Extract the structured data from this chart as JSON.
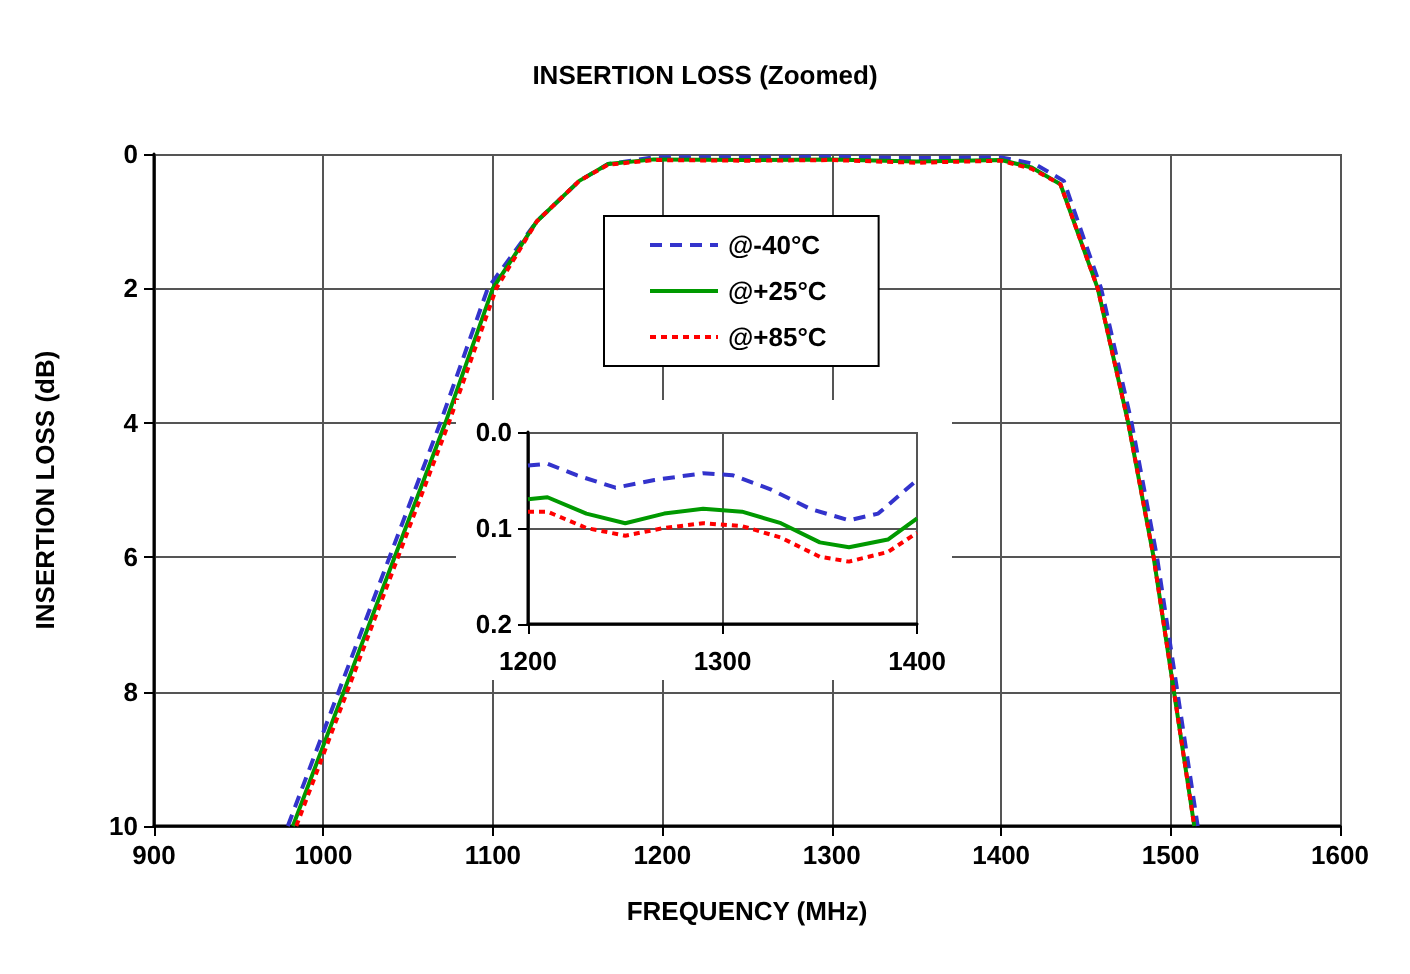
{
  "chart_data": [
    {
      "type": "line",
      "title": "INSERTION LOSS (Zoomed)",
      "xlabel": "FREQUENCY (MHz)",
      "ylabel": "INSERTION LOSS (dB)",
      "xlim": [
        900,
        1600
      ],
      "xticks": [
        900,
        1000,
        1100,
        1200,
        1300,
        1400,
        1500,
        1600
      ],
      "ylim": [
        10,
        0
      ],
      "yticks": [
        0,
        2,
        4,
        6,
        8,
        10
      ],
      "grid": true,
      "legend": "top",
      "marker": "none",
      "series": [
        {
          "name": "@-40°C",
          "color": "#3333cc",
          "line_style": "dashed",
          "x": [
            979,
            1009,
            1039,
            1069,
            1097,
            1126,
            1151,
            1168,
            1195,
            1250,
            1300,
            1350,
            1400,
            1420,
            1437,
            1459,
            1477,
            1492,
            1504,
            1516
          ],
          "values": [
            10,
            8,
            6,
            4,
            2,
            1,
            0.4,
            0.15,
            0.05,
            0.05,
            0.04,
            0.06,
            0.05,
            0.15,
            0.4,
            2,
            4,
            6,
            8,
            10
          ]
        },
        {
          "name": "@+25°C",
          "color": "#009900",
          "line_style": "solid",
          "x": [
            982,
            1012,
            1042,
            1072,
            1100,
            1126,
            1151,
            1168,
            1195,
            1250,
            1300,
            1350,
            1400,
            1418,
            1435,
            1457,
            1475,
            1490,
            1502,
            1514
          ],
          "values": [
            10,
            8,
            6,
            4,
            2,
            1,
            0.4,
            0.15,
            0.08,
            0.09,
            0.08,
            0.11,
            0.09,
            0.2,
            0.45,
            2,
            4,
            6,
            8,
            10
          ]
        },
        {
          "name": "@+85°C",
          "color": "#ff0000",
          "line_style": "dotted",
          "x": [
            984,
            1014,
            1044,
            1074,
            1102,
            1126,
            1151,
            1168,
            1195,
            1250,
            1300,
            1350,
            1400,
            1418,
            1435,
            1457,
            1475,
            1490,
            1502,
            1514
          ],
          "values": [
            10,
            8,
            6,
            4,
            2,
            1,
            0.4,
            0.16,
            0.09,
            0.1,
            0.09,
            0.13,
            0.1,
            0.22,
            0.45,
            2,
            4,
            6,
            8,
            10
          ]
        }
      ]
    },
    {
      "type": "line",
      "xlim": [
        1200,
        1400
      ],
      "xticks": [
        1200,
        1300,
        1400
      ],
      "ylim": [
        0.2,
        0
      ],
      "yticks": [
        "0.0",
        0.1,
        0.2
      ],
      "grid": true,
      "marker": "none",
      "series": [
        {
          "color": "#3333cc",
          "line_style": "dashed",
          "x": [
            1200,
            1210,
            1225,
            1245,
            1265,
            1290,
            1305,
            1325,
            1345,
            1365,
            1380,
            1400
          ],
          "values": [
            0.035,
            0.033,
            0.045,
            0.058,
            0.05,
            0.043,
            0.045,
            0.06,
            0.08,
            0.092,
            0.085,
            0.05
          ]
        },
        {
          "color": "#009900",
          "line_style": "solid",
          "x": [
            1200,
            1210,
            1230,
            1250,
            1270,
            1290,
            1310,
            1330,
            1350,
            1365,
            1385,
            1400
          ],
          "values": [
            0.07,
            0.068,
            0.085,
            0.095,
            0.085,
            0.08,
            0.083,
            0.095,
            0.115,
            0.12,
            0.112,
            0.09
          ]
        },
        {
          "color": "#ff0000",
          "line_style": "dotted",
          "x": [
            1200,
            1210,
            1230,
            1250,
            1270,
            1290,
            1310,
            1330,
            1350,
            1365,
            1385,
            1400
          ],
          "values": [
            0.083,
            0.083,
            0.1,
            0.108,
            0.1,
            0.095,
            0.098,
            0.11,
            0.13,
            0.135,
            0.125,
            0.105
          ]
        }
      ]
    }
  ]
}
